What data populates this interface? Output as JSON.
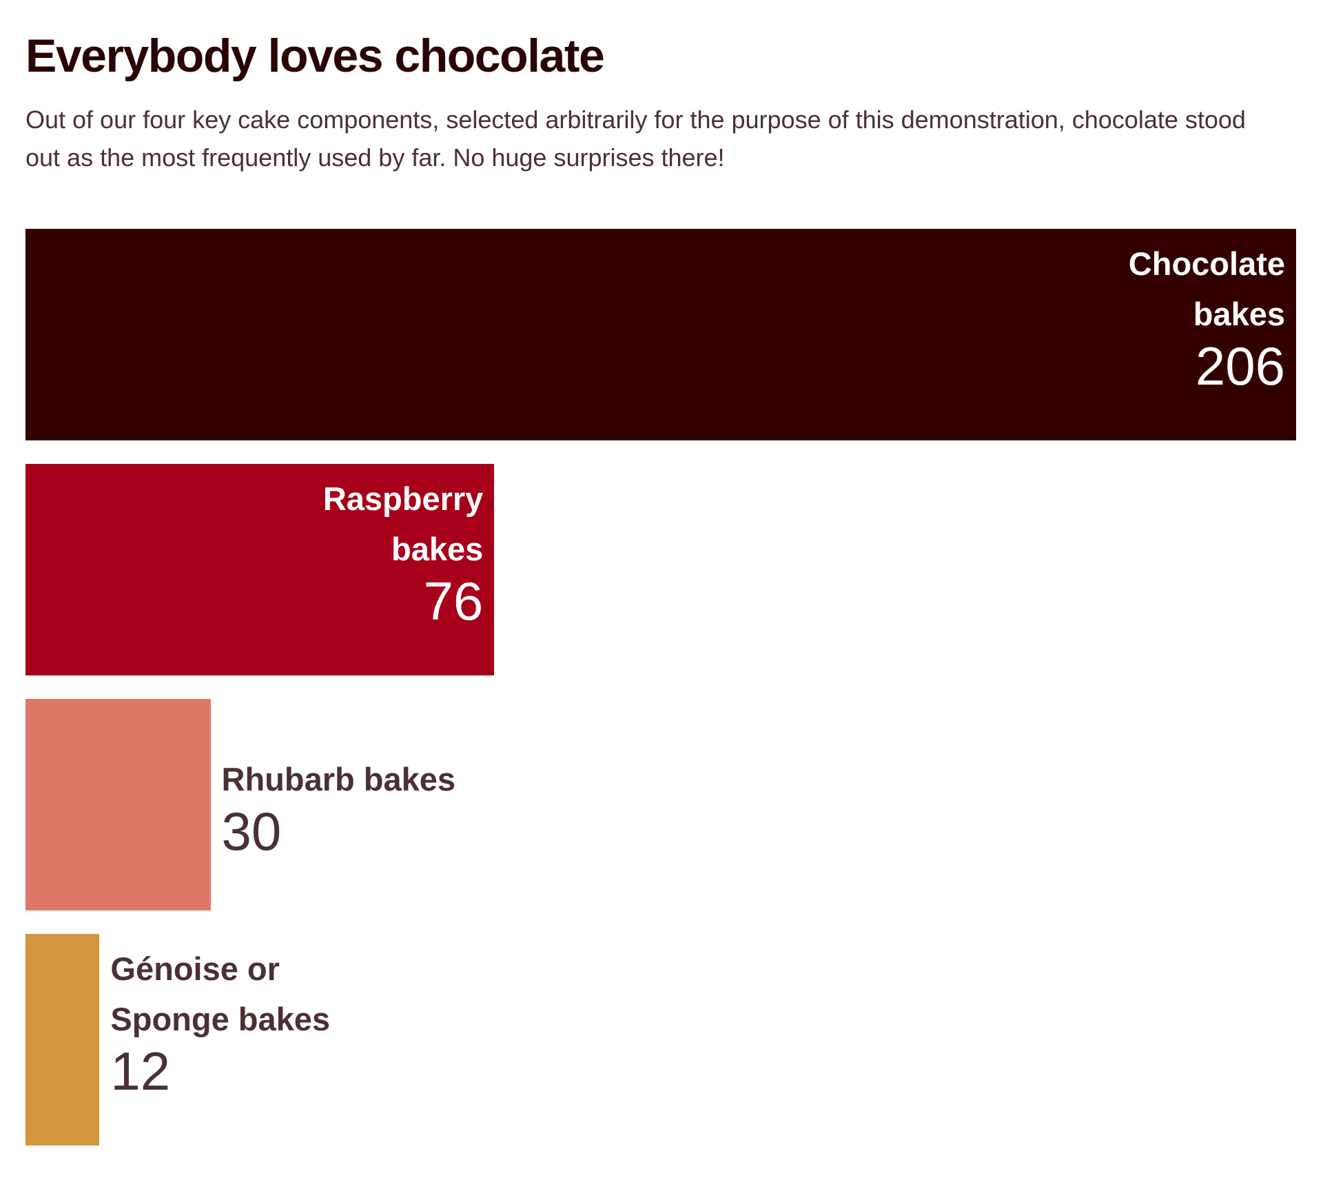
{
  "chart_data": {
    "type": "bar",
    "orientation": "horizontal",
    "title": "Everybody loves chocolate",
    "subtitle": "Out of our four key cake components, selected arbitrarily for the purpose of this demonstration, chocolate stood out as the most frequently used by far. No huge surprises there!",
    "categories": [
      "Chocolate bakes",
      "Raspberry bakes",
      "Rhubarb bakes",
      "Génoise or Sponge bakes"
    ],
    "values": [
      206,
      76,
      30,
      12
    ],
    "colors": [
      "#330000",
      "#a6001a",
      "#e07867",
      "#d4963f"
    ],
    "xlim": [
      0,
      206
    ],
    "grid": false,
    "legend": "none"
  }
}
